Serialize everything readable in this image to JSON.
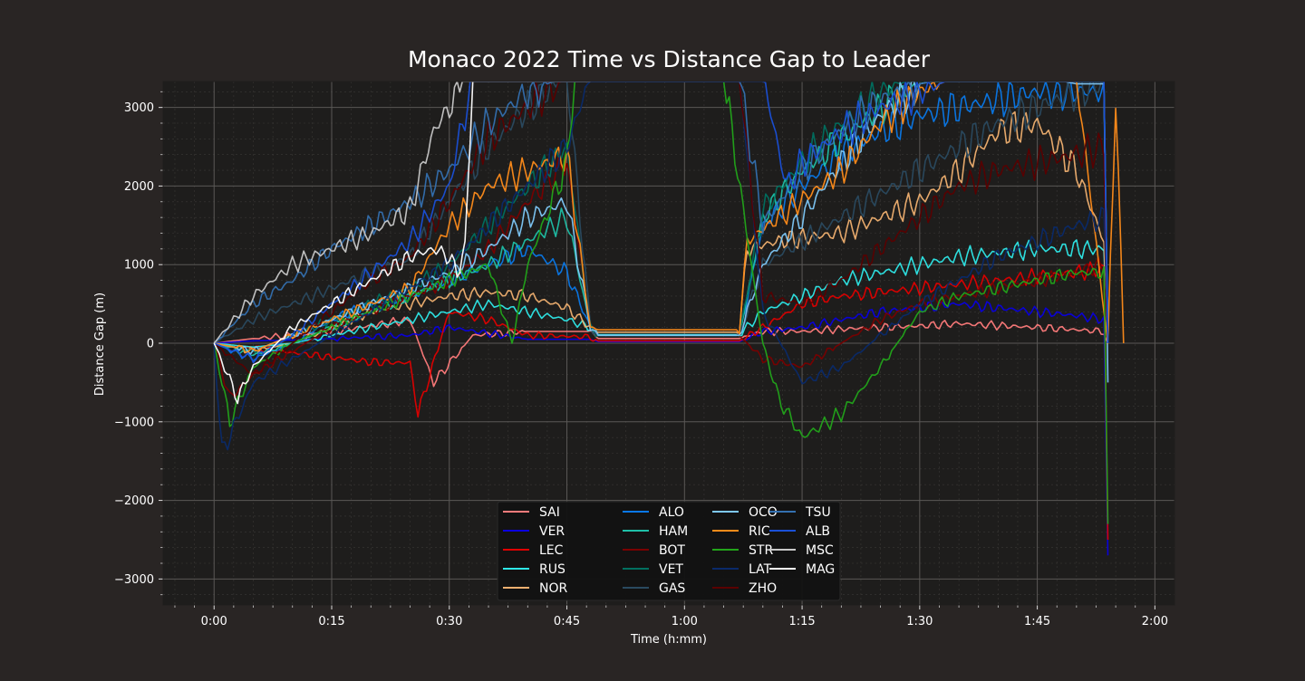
{
  "chart_data": {
    "type": "line",
    "title": "Monaco 2022 Time vs Distance Gap to Leader",
    "xlabel": "Time (h:mm)",
    "ylabel": "Distance Gap (m)",
    "x_unit": "minutes since race start",
    "xlim": [
      -6.5,
      122.5
    ],
    "ylim": [
      -3330,
      3330
    ],
    "x_ticks": [
      {
        "value": 0,
        "label": "0:00"
      },
      {
        "value": 15,
        "label": "0:15"
      },
      {
        "value": 30,
        "label": "0:30"
      },
      {
        "value": 45,
        "label": "0:45"
      },
      {
        "value": 60,
        "label": "1:00"
      },
      {
        "value": 75,
        "label": "1:15"
      },
      {
        "value": 90,
        "label": "1:30"
      },
      {
        "value": 105,
        "label": "1:45"
      },
      {
        "value": 120,
        "label": "2:00"
      }
    ],
    "y_ticks": [
      {
        "value": 3000,
        "label": "3000"
      },
      {
        "value": 2000,
        "label": "2000"
      },
      {
        "value": 1000,
        "label": "1000"
      },
      {
        "value": 0,
        "label": "0"
      },
      {
        "value": -1000,
        "label": "−1000"
      },
      {
        "value": -2000,
        "label": "−2000"
      },
      {
        "value": -3000,
        "label": "−3000"
      }
    ],
    "grid": true,
    "legend_position": "lower-center",
    "background": "#1e1d1c",
    "series": [
      {
        "name": "SAI",
        "color": "#ff7b7b",
        "x": [
          0,
          5,
          10,
          15,
          20,
          25,
          28,
          33,
          40,
          48,
          49,
          67,
          70,
          75,
          80,
          90,
          95,
          105,
          113.5,
          114
        ],
        "y": [
          0,
          60,
          100,
          150,
          220,
          300,
          -500,
          100,
          150,
          150,
          60,
          60,
          150,
          150,
          180,
          220,
          250,
          200,
          150,
          0
        ]
      },
      {
        "name": "VER",
        "color": "#0a00e0",
        "x": [
          0,
          5,
          10,
          15,
          20,
          25,
          30,
          40,
          48,
          49,
          67,
          70,
          75,
          80,
          85,
          90,
          95,
          100,
          105,
          110,
          113.5,
          114
        ],
        "y": [
          0,
          30,
          40,
          60,
          80,
          100,
          200,
          50,
          50,
          20,
          20,
          150,
          200,
          300,
          400,
          450,
          500,
          450,
          400,
          350,
          300,
          -2700
        ]
      },
      {
        "name": "LEC",
        "color": "#e00000",
        "x": [
          0,
          5,
          10,
          15,
          20,
          25,
          26,
          30,
          35,
          40,
          48,
          49,
          67,
          70,
          75,
          80,
          85,
          90,
          95,
          100,
          105,
          110,
          113.5,
          114
        ],
        "y": [
          0,
          -60,
          -120,
          -180,
          -240,
          -250,
          -900,
          400,
          300,
          100,
          80,
          30,
          30,
          200,
          500,
          600,
          650,
          700,
          750,
          800,
          850,
          900,
          950,
          -2500
        ]
      },
      {
        "name": "RUS",
        "color": "#2ee8e8",
        "x": [
          0,
          5,
          10,
          15,
          20,
          25,
          30,
          35,
          40,
          45,
          48,
          49,
          67,
          70,
          75,
          80,
          85,
          90,
          95,
          100,
          105,
          110,
          113.5,
          114
        ],
        "y": [
          0,
          -50,
          0,
          100,
          200,
          300,
          400,
          500,
          400,
          300,
          200,
          110,
          110,
          400,
          600,
          800,
          900,
          1000,
          1100,
          1150,
          1200,
          1200,
          1200,
          0
        ]
      },
      {
        "name": "NOR",
        "color": "#f0b070",
        "x": [
          0,
          5,
          10,
          15,
          20,
          25,
          30,
          35,
          40,
          45,
          48,
          49,
          67,
          68,
          72,
          80,
          85,
          90,
          95,
          100,
          105,
          110,
          113.5,
          114
        ],
        "y": [
          0,
          -100,
          0,
          200,
          400,
          500,
          600,
          650,
          600,
          450,
          200,
          140,
          140,
          1200,
          1300,
          1400,
          1600,
          1800,
          2200,
          2700,
          2800,
          2200,
          1300,
          0
        ]
      },
      {
        "name": "ALO",
        "color": "#0a78e8",
        "x": [
          0,
          5,
          10,
          15,
          20,
          25,
          30,
          35,
          40,
          45,
          48,
          49,
          67,
          70,
          75,
          80,
          85,
          90,
          95,
          100,
          105,
          110,
          113.5,
          114
        ],
        "y": [
          0,
          -200,
          0,
          300,
          500,
          600,
          800,
          1000,
          1200,
          900,
          200,
          100,
          100,
          1500,
          2000,
          2400,
          2700,
          2900,
          3000,
          3100,
          3200,
          3200,
          3200,
          0
        ]
      },
      {
        "name": "HAM",
        "color": "#1fc0a8",
        "x": [
          0,
          5,
          10,
          15,
          20,
          25,
          30,
          35,
          40,
          45,
          48,
          49,
          67,
          70,
          75,
          80,
          85,
          90,
          95,
          100,
          105,
          110,
          113.5,
          114
        ],
        "y": [
          0,
          -150,
          0,
          200,
          400,
          600,
          800,
          1000,
          1300,
          1600,
          200,
          100,
          100,
          1600,
          2200,
          2600,
          3000,
          3300,
          3400,
          3400,
          3400,
          3400,
          3400,
          0
        ]
      },
      {
        "name": "BOT",
        "color": "#7a0000",
        "x": [
          0,
          2,
          5,
          10,
          15,
          20,
          25,
          30,
          35,
          40,
          45,
          48,
          49,
          67,
          70,
          75,
          80,
          85,
          90,
          95,
          100,
          105,
          110,
          113.5,
          114
        ],
        "y": [
          0,
          -700,
          -400,
          -100,
          200,
          400,
          600,
          800,
          1200,
          1800,
          2300,
          200,
          100,
          100,
          -200,
          -300,
          0,
          300,
          500,
          600,
          700,
          800,
          900,
          1000,
          0
        ]
      },
      {
        "name": "VET",
        "color": "#007060",
        "x": [
          0,
          5,
          10,
          15,
          20,
          25,
          30,
          35,
          40,
          45,
          48,
          49,
          67,
          70,
          75,
          80,
          85,
          90,
          95,
          100,
          105,
          110,
          113.5,
          114
        ],
        "y": [
          0,
          -100,
          100,
          300,
          500,
          700,
          1000,
          1500,
          2000,
          2500,
          200,
          100,
          100,
          1700,
          2300,
          2800,
          3200,
          3400,
          3400,
          3400,
          3400,
          3400,
          3400,
          0
        ]
      },
      {
        "name": "GAS",
        "color": "#2a4a60",
        "x": [
          0,
          5,
          10,
          15,
          20,
          25,
          30,
          35,
          40,
          45,
          48,
          49,
          67,
          70,
          75,
          80,
          85,
          90,
          95,
          100,
          105,
          110,
          113.5,
          114
        ],
        "y": [
          0,
          300,
          500,
          700,
          900,
          1100,
          1800,
          2500,
          3000,
          3400,
          200,
          100,
          100,
          1000,
          1300,
          1600,
          1900,
          2200,
          2500,
          2800,
          3000,
          3200,
          3300,
          0
        ]
      },
      {
        "name": "OCO",
        "color": "#7ec8f8",
        "x": [
          0,
          5,
          10,
          15,
          20,
          25,
          30,
          35,
          40,
          45,
          48,
          49,
          67,
          70,
          75,
          80,
          85,
          90,
          95,
          100,
          105,
          110,
          113.5,
          114
        ],
        "y": [
          0,
          -100,
          100,
          300,
          500,
          700,
          900,
          1200,
          1600,
          1800,
          200,
          100,
          100,
          1000,
          1600,
          2300,
          2900,
          3300,
          3400,
          3400,
          3400,
          3300,
          3300,
          -500
        ]
      },
      {
        "name": "RIC",
        "color": "#ff8c1a",
        "x": [
          0,
          5,
          10,
          15,
          20,
          25,
          30,
          35,
          40,
          45,
          48,
          49,
          67,
          68,
          72,
          80,
          85,
          90,
          95,
          100,
          105,
          110,
          114,
          115,
          116
        ],
        "y": [
          0,
          -100,
          100,
          300,
          500,
          700,
          1500,
          2000,
          2200,
          2400,
          200,
          170,
          170,
          1300,
          1600,
          2200,
          2800,
          3200,
          3400,
          3400,
          3400,
          3400,
          0,
          3200,
          0
        ]
      },
      {
        "name": "STR",
        "color": "#22a51a",
        "x": [
          0,
          2,
          5,
          10,
          15,
          20,
          25,
          30,
          35,
          38,
          40,
          45,
          46,
          48,
          63,
          65,
          70,
          72,
          75,
          80,
          85,
          90,
          95,
          100,
          105,
          110,
          113.5,
          114
        ],
        "y": [
          0,
          -1000,
          -300,
          0,
          200,
          400,
          600,
          800,
          1000,
          0,
          1000,
          2300,
          3400,
          3400,
          3400,
          3400,
          0,
          -700,
          -1200,
          -900,
          -300,
          400,
          600,
          700,
          800,
          900,
          900,
          -2300
        ]
      },
      {
        "name": "LAT",
        "color": "#0a2a6a",
        "x": [
          0,
          1,
          5,
          10,
          15,
          20,
          25,
          30,
          35,
          40,
          45,
          48,
          67,
          70,
          75,
          80,
          85,
          90,
          95,
          100,
          105,
          110,
          113.5,
          114
        ],
        "y": [
          0,
          -1400,
          -500,
          -200,
          100,
          400,
          700,
          1000,
          1500,
          2000,
          2500,
          3400,
          3400,
          400,
          -500,
          -300,
          100,
          500,
          800,
          1100,
          1300,
          1500,
          1600,
          0
        ]
      },
      {
        "name": "ZHO",
        "color": "#5a0000",
        "x": [
          0,
          5,
          10,
          15,
          20,
          25,
          30,
          35,
          40,
          45,
          48,
          67,
          70,
          75,
          80,
          85,
          90,
          95,
          100,
          105,
          110,
          113.5,
          114
        ],
        "y": [
          0,
          -400,
          0,
          400,
          800,
          1100,
          1800,
          2600,
          3000,
          3400,
          3400,
          3400,
          600,
          500,
          800,
          1200,
          1600,
          2000,
          2200,
          2300,
          2400,
          2500,
          0
        ]
      },
      {
        "name": "TSU",
        "color": "#3470b0",
        "x": [
          0,
          5,
          10,
          15,
          20,
          25,
          30,
          35,
          40,
          45,
          48,
          67,
          70,
          75,
          80,
          85,
          90,
          95,
          100,
          105,
          110,
          113.5,
          114
        ],
        "y": [
          0,
          500,
          800,
          1200,
          1500,
          1800,
          2200,
          2800,
          3200,
          3400,
          3400,
          3400,
          1500,
          2200,
          2700,
          3100,
          3300,
          3400,
          3400,
          3400,
          3400,
          3400,
          0
        ]
      },
      {
        "name": "ALB",
        "color": "#1a50d8",
        "x": [
          0,
          5,
          10,
          15,
          20,
          25,
          30,
          33,
          35,
          40,
          45,
          48,
          67,
          70,
          73,
          75,
          80,
          85,
          90,
          95,
          100,
          105,
          110,
          113.5,
          114
        ],
        "y": [
          0,
          -200,
          100,
          500,
          900,
          1300,
          2000,
          3400,
          3400,
          3400,
          3400,
          3400,
          3400,
          3400,
          2000,
          2300,
          2700,
          3000,
          3200,
          3400,
          3400,
          3400,
          3400,
          3400,
          0
        ]
      },
      {
        "name": "MSC",
        "color": "#c8c8c8",
        "x": [
          0,
          5,
          10,
          15,
          20,
          25,
          28,
          30,
          32,
          35,
          40,
          45,
          48
        ],
        "y": [
          0,
          600,
          1000,
          1200,
          1400,
          1700,
          2700,
          3000,
          3400,
          3400,
          3400,
          3400,
          3400
        ]
      },
      {
        "name": "MAG",
        "color": "#ffffff",
        "x": [
          0,
          3,
          5,
          10,
          15,
          20,
          25,
          28,
          30,
          31,
          32,
          33
        ],
        "y": [
          0,
          -700,
          -300,
          200,
          500,
          800,
          1100,
          1200,
          1100,
          900,
          1200,
          3400
        ]
      }
    ]
  }
}
